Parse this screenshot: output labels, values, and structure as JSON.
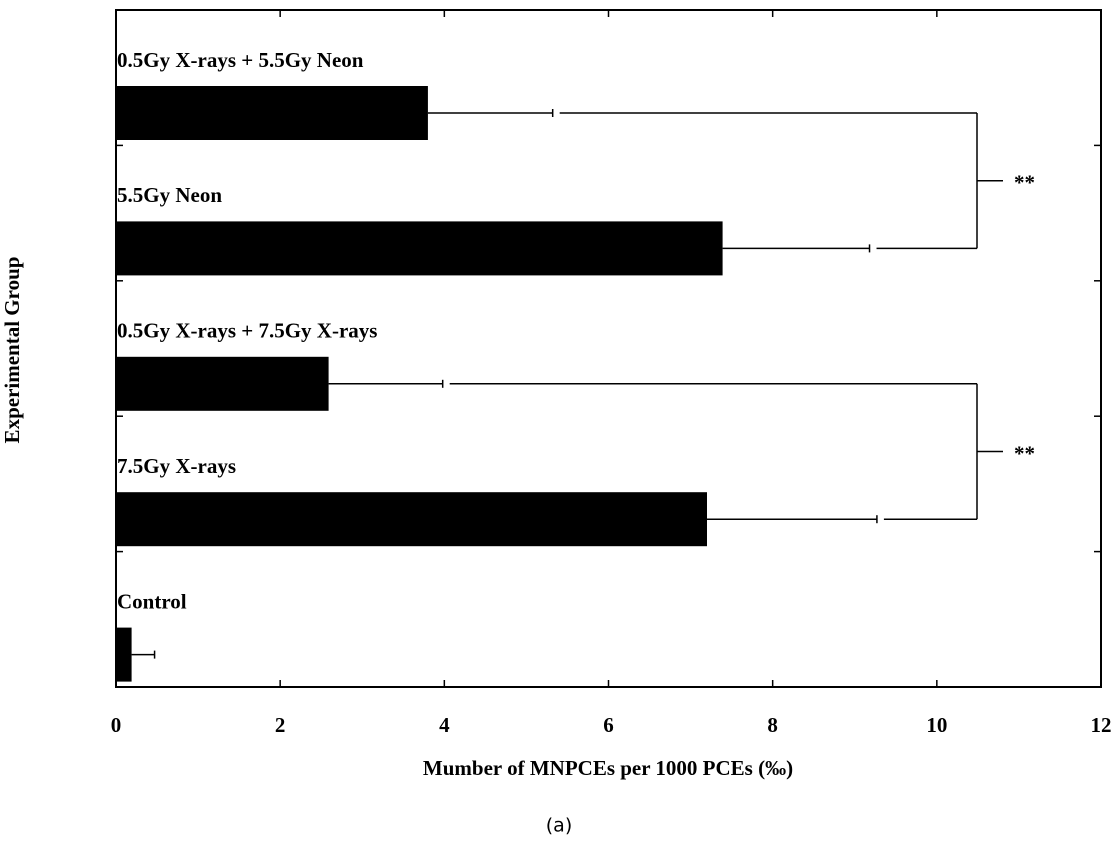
{
  "chart_data": {
    "type": "barh",
    "categories": [
      "0.5Gy X-rays + 5.5Gy Neon",
      "5.5Gy Neon",
      "0.5Gy X-rays + 7.5Gy X-rays",
      "7.5Gy X-rays",
      "Control"
    ],
    "values": [
      3.8,
      7.39,
      2.59,
      7.2,
      0.19
    ],
    "errors": [
      1.52,
      1.79,
      1.39,
      2.07,
      0.28
    ],
    "color": "#000000",
    "xlim": [
      0,
      12
    ],
    "xticks": [
      0,
      2,
      4,
      6,
      8,
      10,
      12
    ],
    "xlabel": "Mumber of MNPCEs per 1000 PCEs (‰)",
    "ylabel": "Experimental Group",
    "annotations": [
      "**",
      "**"
    ],
    "caption": "(a)"
  }
}
